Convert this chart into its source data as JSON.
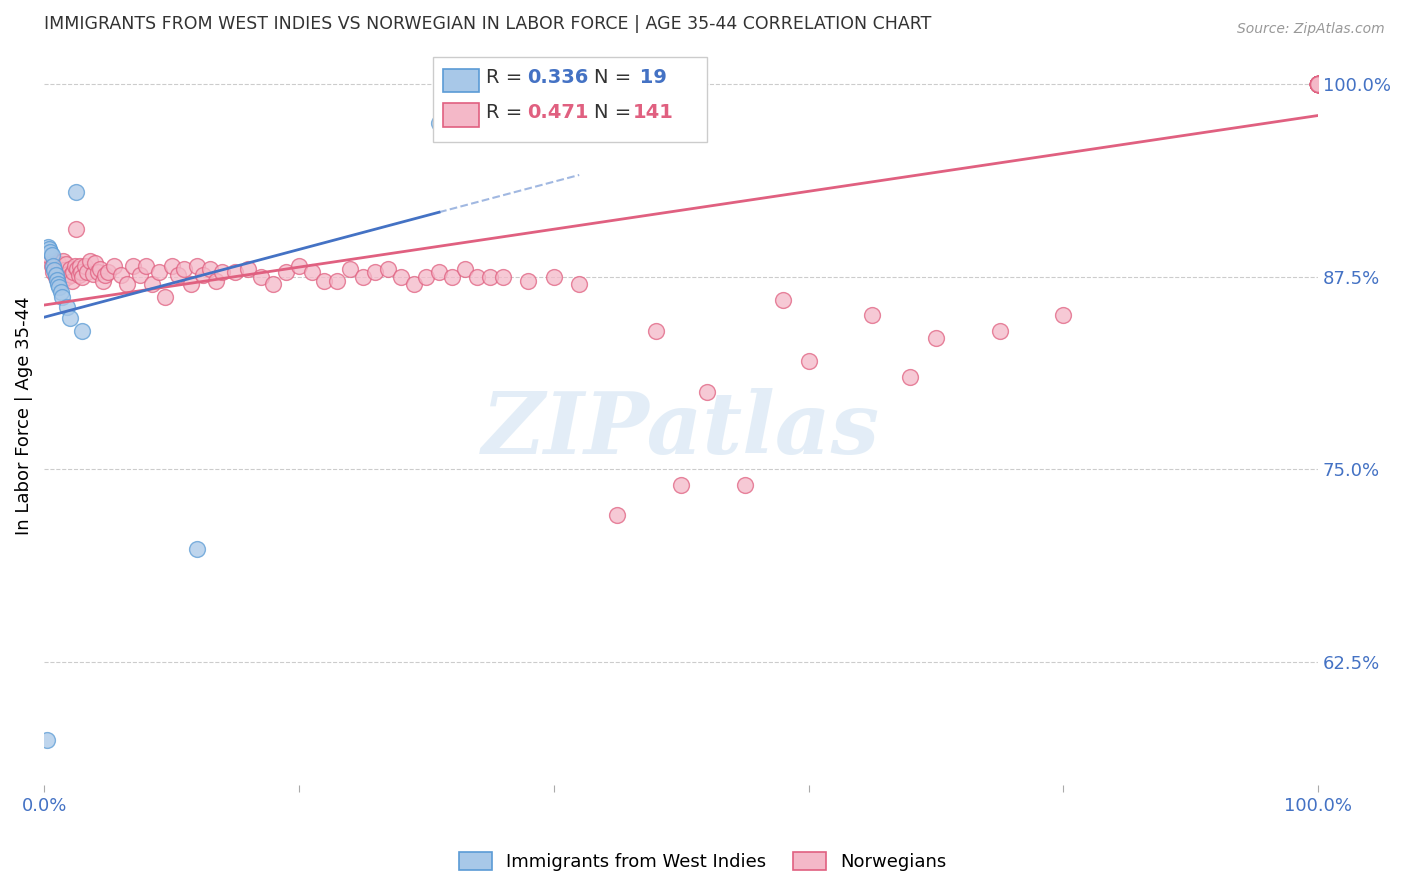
{
  "title": "IMMIGRANTS FROM WEST INDIES VS NORWEGIAN IN LABOR FORCE | AGE 35-44 CORRELATION CHART",
  "source": "Source: ZipAtlas.com",
  "ylabel": "In Labor Force | Age 35-44",
  "ytick_labels": [
    "62.5%",
    "75.0%",
    "87.5%",
    "100.0%"
  ],
  "ytick_values": [
    0.625,
    0.75,
    0.875,
    1.0
  ],
  "blue_color": "#a8c8e8",
  "blue_edge_color": "#5b9bd5",
  "pink_color": "#f4b8c8",
  "pink_edge_color": "#e06080",
  "blue_line_color": "#4472c4",
  "pink_line_color": "#e06080",
  "axis_label_color": "#4472c4",
  "title_color": "#333333",
  "source_color": "#999999",
  "grid_color": "#cccccc",
  "background_color": "#ffffff",
  "xlim": [
    0.0,
    1.0
  ],
  "ylim": [
    0.545,
    1.025
  ],
  "blue_x": [
    0.002,
    0.003,
    0.004,
    0.005,
    0.006,
    0.007,
    0.008,
    0.009,
    0.01,
    0.011,
    0.012,
    0.013,
    0.014,
    0.018,
    0.02,
    0.025,
    0.03,
    0.12,
    0.31
  ],
  "blue_y": [
    0.574,
    0.894,
    0.893,
    0.891,
    0.889,
    0.882,
    0.879,
    0.876,
    0.873,
    0.87,
    0.868,
    0.865,
    0.862,
    0.855,
    0.848,
    0.93,
    0.84,
    0.698,
    0.975
  ],
  "pink_x": [
    0.005,
    0.006,
    0.007,
    0.008,
    0.009,
    0.01,
    0.011,
    0.012,
    0.013,
    0.014,
    0.015,
    0.016,
    0.017,
    0.018,
    0.019,
    0.02,
    0.021,
    0.022,
    0.023,
    0.024,
    0.025,
    0.026,
    0.027,
    0.028,
    0.029,
    0.03,
    0.032,
    0.034,
    0.036,
    0.038,
    0.04,
    0.042,
    0.044,
    0.046,
    0.048,
    0.05,
    0.055,
    0.06,
    0.065,
    0.07,
    0.075,
    0.08,
    0.085,
    0.09,
    0.095,
    0.1,
    0.105,
    0.11,
    0.115,
    0.12,
    0.125,
    0.13,
    0.135,
    0.14,
    0.15,
    0.16,
    0.17,
    0.18,
    0.19,
    0.2,
    0.21,
    0.22,
    0.23,
    0.24,
    0.25,
    0.26,
    0.27,
    0.28,
    0.29,
    0.3,
    0.31,
    0.32,
    0.33,
    0.34,
    0.35,
    0.36,
    0.38,
    0.4,
    0.42,
    0.45,
    0.48,
    0.5,
    0.52,
    0.55,
    0.58,
    0.6,
    0.65,
    0.68,
    0.7,
    0.75,
    0.8,
    1.0,
    1.0,
    1.0,
    1.0,
    1.0,
    1.0,
    1.0,
    1.0,
    1.0,
    1.0,
    1.0,
    1.0,
    1.0,
    1.0,
    1.0,
    1.0,
    1.0,
    1.0,
    1.0,
    1.0,
    1.0,
    1.0,
    1.0,
    1.0,
    1.0,
    1.0,
    1.0,
    1.0,
    1.0,
    1.0,
    1.0,
    1.0,
    1.0,
    1.0,
    1.0,
    1.0,
    1.0,
    1.0,
    1.0,
    1.0,
    1.0,
    1.0,
    1.0,
    1.0,
    1.0,
    1.0,
    1.0
  ],
  "pink_y": [
    0.888,
    0.882,
    0.878,
    0.885,
    0.875,
    0.878,
    0.884,
    0.88,
    0.876,
    0.872,
    0.885,
    0.879,
    0.883,
    0.875,
    0.877,
    0.88,
    0.876,
    0.872,
    0.878,
    0.882,
    0.906,
    0.88,
    0.876,
    0.882,
    0.878,
    0.875,
    0.882,
    0.878,
    0.885,
    0.877,
    0.884,
    0.878,
    0.88,
    0.872,
    0.876,
    0.878,
    0.882,
    0.876,
    0.87,
    0.882,
    0.876,
    0.882,
    0.87,
    0.878,
    0.862,
    0.882,
    0.876,
    0.88,
    0.87,
    0.882,
    0.876,
    0.88,
    0.872,
    0.878,
    0.878,
    0.88,
    0.875,
    0.87,
    0.878,
    0.882,
    0.878,
    0.872,
    0.872,
    0.88,
    0.875,
    0.878,
    0.88,
    0.875,
    0.87,
    0.875,
    0.878,
    0.875,
    0.88,
    0.875,
    0.875,
    0.875,
    0.872,
    0.875,
    0.87,
    0.72,
    0.84,
    0.74,
    0.8,
    0.74,
    0.86,
    0.82,
    0.85,
    0.81,
    0.835,
    0.84,
    0.85,
    1.0,
    1.0,
    1.0,
    1.0,
    1.0,
    1.0,
    1.0,
    1.0,
    1.0,
    1.0,
    1.0,
    1.0,
    1.0,
    1.0,
    1.0,
    1.0,
    1.0,
    1.0,
    1.0,
    1.0,
    1.0,
    1.0,
    1.0,
    1.0,
    1.0,
    1.0,
    1.0,
    1.0,
    1.0,
    1.0,
    1.0,
    1.0,
    1.0,
    1.0,
    1.0,
    1.0,
    1.0,
    1.0,
    1.0,
    1.0,
    1.0,
    1.0,
    1.0,
    1.0,
    1.0,
    1.0,
    1.0
  ],
  "blue_line_x0": 0.0,
  "blue_line_x1": 0.31,
  "pink_line_x0": 0.0,
  "pink_line_x1": 1.0,
  "blue_line_y0": 0.845,
  "blue_line_y1": 0.975,
  "pink_line_y0": 0.855,
  "pink_line_y1": 0.99,
  "legend_R_color": "#4472c4",
  "legend_N_color": "#4472c4",
  "watermark_text": "ZIPatlas",
  "watermark_color": "#c8ddf0",
  "watermark_alpha": 0.5
}
